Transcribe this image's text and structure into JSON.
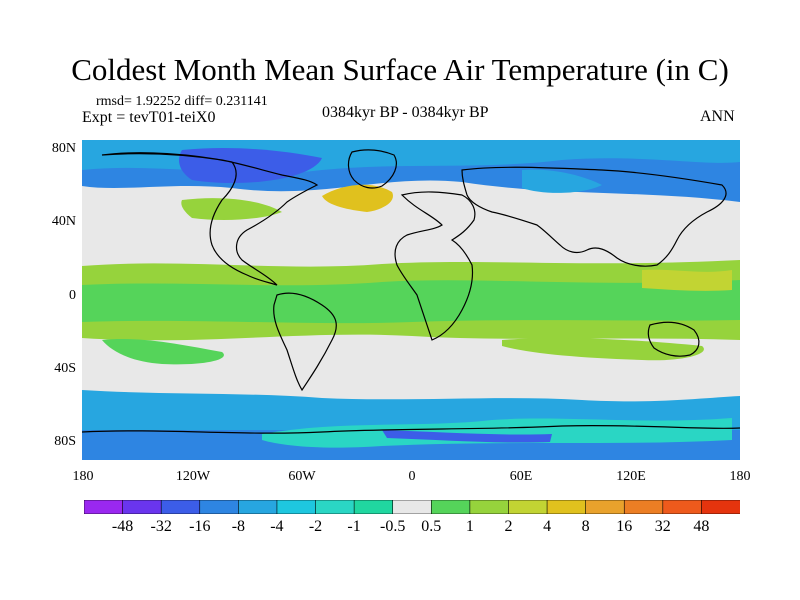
{
  "title": "Coldest Month Mean Surface Air Temperature (in C)",
  "stats": {
    "rmsd_line": "rmsd= 1.92252 diff= 0.231141",
    "expt_line": "Expt = tevT01-teiX0"
  },
  "period": "0384kyr BP - 0384kyr BP",
  "season": "ANN",
  "axes": {
    "y_labels": [
      "80N",
      "40N",
      "0",
      "40S",
      "80S"
    ],
    "x_labels": [
      "180",
      "120W",
      "60W",
      "0",
      "60E",
      "120E",
      "180"
    ]
  },
  "colorbar": {
    "labels": [
      "-48",
      "-32",
      "-16",
      "-8",
      "-4",
      "-2",
      "-1",
      "-0.5",
      "0.5",
      "1",
      "2",
      "4",
      "8",
      "16",
      "32",
      "48"
    ],
    "colors": [
      "#9a28f0",
      "#6a35ee",
      "#3c5de8",
      "#2e85e2",
      "#27a6e0",
      "#1ec7df",
      "#2ad6c4",
      "#20d7a0",
      "#e8e8e8",
      "#55d45a",
      "#96d33c",
      "#c2d433",
      "#e0c11e",
      "#e9a22c",
      "#ec7e24",
      "#ee5a1c",
      "#e5340e"
    ]
  }
}
